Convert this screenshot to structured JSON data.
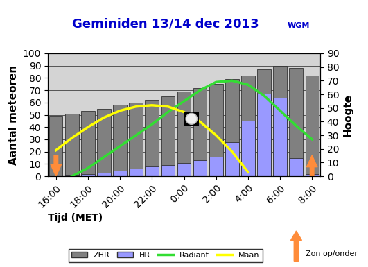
{
  "chart_data": {
    "type": "bar",
    "title": "Geminiden 13/14 dec 2013",
    "subtitle": "WGM",
    "x_label": "Tijd (MET)",
    "y_label": "Aantal meteoren",
    "y2_label": "Hoogte",
    "annotation": "Zon op/onder",
    "categories": [
      "16:00",
      null,
      "18:00",
      null,
      "20:00",
      null,
      "22:00",
      null,
      "0:00",
      null,
      "2:00",
      null,
      "4:00",
      null,
      "6:00",
      null,
      "8:00"
    ],
    "series": [
      {
        "name": "ZHR",
        "type": "bar",
        "color": "#808080",
        "values": [
          49,
          51,
          53,
          55,
          58,
          60,
          62,
          65,
          69,
          72,
          75,
          79,
          82,
          87,
          90,
          88,
          82
        ]
      },
      {
        "name": "HR",
        "type": "bar",
        "color": "#9999ff",
        "values": [
          0,
          0.5,
          1.5,
          3,
          4.5,
          6,
          8,
          9,
          11,
          13,
          16,
          28,
          45,
          67,
          64,
          15,
          2
        ]
      },
      {
        "name": "Radiant",
        "type": "line",
        "axis": "y2",
        "color": "#33dd33",
        "values": [
          null,
          0,
          6,
          14,
          22,
          30,
          38,
          47,
          55,
          63,
          69,
          70,
          67,
          59,
          48,
          37,
          27
        ]
      },
      {
        "name": "Maan",
        "type": "line",
        "axis": "y2",
        "color": "#ffff00",
        "values": [
          19,
          28,
          36,
          43,
          48,
          51,
          52,
          51,
          47,
          40,
          30,
          18,
          3,
          null,
          null,
          null,
          null
        ]
      }
    ],
    "ylim": [
      0,
      100
    ],
    "yticks": [
      0,
      10,
      20,
      30,
      40,
      50,
      60,
      70,
      80,
      90,
      100
    ],
    "y2lim": [
      0,
      90
    ],
    "y2ticks": [
      0,
      10,
      20,
      30,
      40,
      50,
      60,
      70,
      80,
      90
    ],
    "grid": true,
    "legend": "lower center"
  }
}
